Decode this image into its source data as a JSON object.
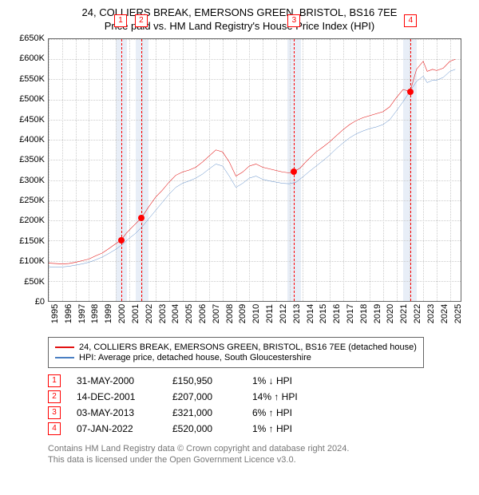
{
  "title": {
    "line1": "24, COLLIERS BREAK, EMERSONS GREEN, BRISTOL, BS16 7EE",
    "line2": "Price paid vs. HM Land Registry's House Price Index (HPI)"
  },
  "chart": {
    "type": "line",
    "background_color": "#ffffff",
    "border_color": "#666666",
    "grid_color": "#cccccc",
    "band_color": "#e8eef7",
    "marker_border": "#ff0000",
    "marker_text": "#ff0000",
    "dot_color": "#ff0000",
    "x": {
      "min": 1995,
      "max": 2025.8,
      "ticks": [
        1995,
        1996,
        1997,
        1998,
        1999,
        2000,
        2001,
        2002,
        2003,
        2004,
        2005,
        2006,
        2007,
        2008,
        2009,
        2010,
        2011,
        2012,
        2013,
        2014,
        2015,
        2016,
        2017,
        2018,
        2019,
        2020,
        2021,
        2022,
        2023,
        2024,
        2025
      ],
      "labels": [
        "1995",
        "1996",
        "1997",
        "1998",
        "1999",
        "2000",
        "2001",
        "2002",
        "2003",
        "2004",
        "2005",
        "2006",
        "2007",
        "2008",
        "2009",
        "2010",
        "2011",
        "2012",
        "2013",
        "2014",
        "2015",
        "2016",
        "2017",
        "2018",
        "2019",
        "2020",
        "2021",
        "2022",
        "2023",
        "2024",
        "2025"
      ]
    },
    "y": {
      "min": 0,
      "max": 650000,
      "ticks": [
        0,
        50000,
        100000,
        150000,
        200000,
        250000,
        300000,
        350000,
        400000,
        450000,
        500000,
        550000,
        600000,
        650000
      ],
      "labels": [
        "£0",
        "£50K",
        "£100K",
        "£150K",
        "£200K",
        "£250K",
        "£300K",
        "£350K",
        "£400K",
        "£450K",
        "£500K",
        "£550K",
        "£600K",
        "£650K"
      ]
    },
    "bands": [
      {
        "from": 2000.0,
        "to": 2000.83
      },
      {
        "from": 2001.5,
        "to": 2002.45
      },
      {
        "from": 2012.85,
        "to": 2013.85
      },
      {
        "from": 2021.5,
        "to": 2022.5
      }
    ],
    "sale_markers": [
      {
        "label": "1",
        "x": 2000.41,
        "y": 150950
      },
      {
        "label": "2",
        "x": 2001.95,
        "y": 207000
      },
      {
        "label": "3",
        "x": 2013.34,
        "y": 321000
      },
      {
        "label": "4",
        "x": 2022.02,
        "y": 520000
      }
    ],
    "series": [
      {
        "name": "property",
        "color": "#e21111",
        "width": 1.8,
        "points": [
          [
            1995.0,
            94000
          ],
          [
            1995.5,
            93000
          ],
          [
            1996.0,
            92000
          ],
          [
            1996.5,
            93000
          ],
          [
            1997.0,
            96000
          ],
          [
            1997.5,
            100000
          ],
          [
            1998.0,
            104000
          ],
          [
            1998.5,
            112000
          ],
          [
            1999.0,
            119000
          ],
          [
            1999.5,
            130000
          ],
          [
            2000.0,
            142000
          ],
          [
            2000.41,
            150950
          ],
          [
            2000.8,
            168000
          ],
          [
            2001.2,
            182000
          ],
          [
            2001.6,
            195000
          ],
          [
            2001.95,
            207000
          ],
          [
            2002.4,
            230000
          ],
          [
            2003.0,
            258000
          ],
          [
            2003.5,
            275000
          ],
          [
            2004.0,
            295000
          ],
          [
            2004.5,
            312000
          ],
          [
            2005.0,
            320000
          ],
          [
            2005.5,
            325000
          ],
          [
            2006.0,
            332000
          ],
          [
            2006.5,
            345000
          ],
          [
            2007.0,
            360000
          ],
          [
            2007.5,
            375000
          ],
          [
            2008.0,
            370000
          ],
          [
            2008.5,
            345000
          ],
          [
            2009.0,
            310000
          ],
          [
            2009.5,
            320000
          ],
          [
            2010.0,
            335000
          ],
          [
            2010.5,
            340000
          ],
          [
            2011.0,
            332000
          ],
          [
            2011.5,
            328000
          ],
          [
            2012.0,
            324000
          ],
          [
            2012.5,
            320000
          ],
          [
            2013.0,
            318000
          ],
          [
            2013.34,
            321000
          ],
          [
            2013.8,
            330000
          ],
          [
            2014.3,
            348000
          ],
          [
            2015.0,
            370000
          ],
          [
            2015.5,
            382000
          ],
          [
            2016.0,
            395000
          ],
          [
            2016.5,
            410000
          ],
          [
            2017.0,
            425000
          ],
          [
            2017.5,
            438000
          ],
          [
            2018.0,
            448000
          ],
          [
            2018.5,
            455000
          ],
          [
            2019.0,
            460000
          ],
          [
            2019.5,
            465000
          ],
          [
            2020.0,
            470000
          ],
          [
            2020.5,
            482000
          ],
          [
            2021.0,
            505000
          ],
          [
            2021.5,
            525000
          ],
          [
            2022.02,
            520000
          ],
          [
            2022.5,
            575000
          ],
          [
            2023.0,
            595000
          ],
          [
            2023.3,
            570000
          ],
          [
            2023.7,
            575000
          ],
          [
            2024.0,
            572000
          ],
          [
            2024.5,
            578000
          ],
          [
            2025.0,
            595000
          ],
          [
            2025.4,
            600000
          ]
        ]
      },
      {
        "name": "hpi",
        "color": "#4a7fc2",
        "width": 1.5,
        "points": [
          [
            1995.0,
            85000
          ],
          [
            1995.5,
            84000
          ],
          [
            1996.0,
            84500
          ],
          [
            1996.5,
            86000
          ],
          [
            1997.0,
            89000
          ],
          [
            1997.5,
            92000
          ],
          [
            1998.0,
            96000
          ],
          [
            1998.5,
            102000
          ],
          [
            1999.0,
            109000
          ],
          [
            1999.5,
            118000
          ],
          [
            2000.0,
            128000
          ],
          [
            2000.5,
            140000
          ],
          [
            2001.0,
            155000
          ],
          [
            2001.5,
            168000
          ],
          [
            2002.0,
            185000
          ],
          [
            2002.5,
            205000
          ],
          [
            2003.0,
            225000
          ],
          [
            2003.5,
            245000
          ],
          [
            2004.0,
            265000
          ],
          [
            2004.5,
            282000
          ],
          [
            2005.0,
            292000
          ],
          [
            2005.5,
            298000
          ],
          [
            2006.0,
            305000
          ],
          [
            2006.5,
            315000
          ],
          [
            2007.0,
            328000
          ],
          [
            2007.5,
            340000
          ],
          [
            2008.0,
            335000
          ],
          [
            2008.5,
            310000
          ],
          [
            2009.0,
            282000
          ],
          [
            2009.5,
            292000
          ],
          [
            2010.0,
            305000
          ],
          [
            2010.5,
            310000
          ],
          [
            2011.0,
            302000
          ],
          [
            2011.5,
            298000
          ],
          [
            2012.0,
            295000
          ],
          [
            2012.5,
            292000
          ],
          [
            2013.0,
            291000
          ],
          [
            2013.5,
            295000
          ],
          [
            2014.0,
            308000
          ],
          [
            2014.5,
            322000
          ],
          [
            2015.0,
            335000
          ],
          [
            2015.5,
            348000
          ],
          [
            2016.0,
            362000
          ],
          [
            2016.5,
            378000
          ],
          [
            2017.0,
            392000
          ],
          [
            2017.5,
            405000
          ],
          [
            2018.0,
            415000
          ],
          [
            2018.5,
            422000
          ],
          [
            2019.0,
            428000
          ],
          [
            2019.5,
            432000
          ],
          [
            2020.0,
            438000
          ],
          [
            2020.5,
            450000
          ],
          [
            2021.0,
            472000
          ],
          [
            2021.5,
            495000
          ],
          [
            2022.0,
            520000
          ],
          [
            2022.5,
            545000
          ],
          [
            2023.0,
            558000
          ],
          [
            2023.3,
            542000
          ],
          [
            2023.7,
            548000
          ],
          [
            2024.0,
            548000
          ],
          [
            2024.5,
            555000
          ],
          [
            2025.0,
            570000
          ],
          [
            2025.4,
            575000
          ]
        ]
      }
    ]
  },
  "legend": {
    "items": [
      {
        "color": "#e21111",
        "label": "24, COLLIERS BREAK, EMERSONS GREEN, BRISTOL, BS16 7EE (detached house)"
      },
      {
        "color": "#4a7fc2",
        "label": "HPI: Average price, detached house, South Gloucestershire"
      }
    ]
  },
  "sales": [
    {
      "idx": "1",
      "date": "31-MAY-2000",
      "price": "£150,950",
      "delta": "1% ↓ HPI"
    },
    {
      "idx": "2",
      "date": "14-DEC-2001",
      "price": "£207,000",
      "delta": "14% ↑ HPI"
    },
    {
      "idx": "3",
      "date": "03-MAY-2013",
      "price": "£321,000",
      "delta": "6% ↑ HPI"
    },
    {
      "idx": "4",
      "date": "07-JAN-2022",
      "price": "£520,000",
      "delta": "1% ↑ HPI"
    }
  ],
  "attribution": {
    "line1": "Contains HM Land Registry data © Crown copyright and database right 2024.",
    "line2": "This data is licensed under the Open Government Licence v3.0."
  }
}
